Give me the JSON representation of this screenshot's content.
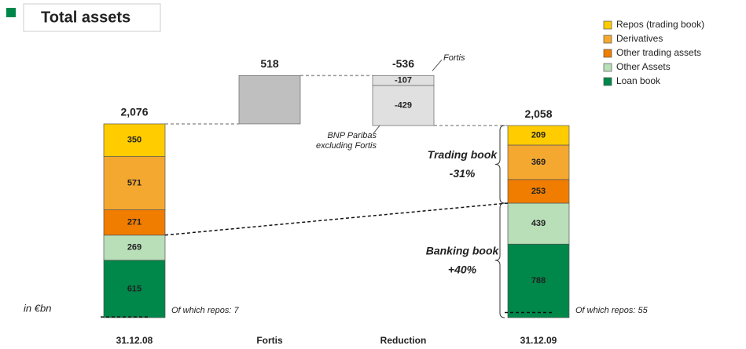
{
  "chart_data": {
    "type": "stacked_waterfall",
    "title": "Total assets",
    "unit_label": "in €bn",
    "categories": [
      "31.12.08",
      "Fortis",
      "Reduction",
      "31.12.09"
    ],
    "series": [
      {
        "name": "Repos (trading book)",
        "color": "#ffcc00",
        "values": [
          350,
          null,
          null,
          209
        ]
      },
      {
        "name": "Derivatives",
        "color": "#f5a830",
        "values": [
          571,
          null,
          null,
          369
        ]
      },
      {
        "name": "Other trading assets",
        "color": "#f07d00",
        "values": [
          271,
          null,
          null,
          253
        ]
      },
      {
        "name": "Other Assets",
        "color": "#b8dfb8",
        "values": [
          269,
          null,
          null,
          439
        ]
      },
      {
        "name": "Loan book",
        "color": "#00874a",
        "values": [
          615,
          null,
          null,
          788
        ]
      }
    ],
    "totals": {
      "values": [
        2076,
        518,
        -536,
        2058
      ],
      "value_labels": [
        "2,076",
        "518",
        "-536",
        "2,058"
      ]
    },
    "bridge": [
      {
        "segments": [
          {
            "value": 518,
            "color": "#bfbfbf"
          }
        ]
      },
      {
        "inner_labels": true,
        "segments": [
          {
            "value": -107,
            "color": "#e0e0e0",
            "name_lines": [
              "Fortis"
            ]
          },
          {
            "value": -429,
            "color": "#e0e0e0",
            "name_lines": [
              "BNP Paribas",
              "excluding Fortis"
            ]
          }
        ]
      }
    ],
    "braces": [
      {
        "lines": [
          "Trading book",
          "-31%"
        ]
      },
      {
        "lines": [
          "Banking book",
          "+40%"
        ]
      }
    ],
    "repo_notes": [
      {
        "text": "Of which repos: 7",
        "value": 7
      },
      {
        "text": "Of which repos: 55",
        "value": 55
      }
    ]
  }
}
